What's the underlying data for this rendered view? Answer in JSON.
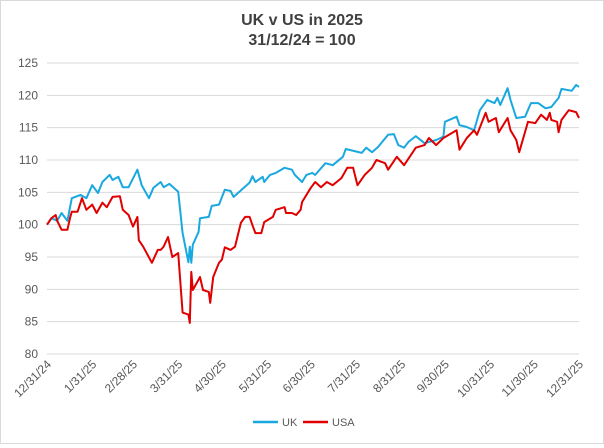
{
  "chart_data": {
    "type": "line",
    "title": "UK v US in 2025",
    "subtitle": "31/12/24 = 100",
    "xlabel": "",
    "ylabel": "",
    "ylim": [
      80,
      125
    ],
    "yticks": [
      80,
      85,
      90,
      95,
      100,
      105,
      110,
      115,
      120,
      125
    ],
    "xlim": [
      "2024-12-31",
      "2025-12-31"
    ],
    "xtick_labels": [
      "12/31/24",
      "1/31/25",
      "2/28/25",
      "3/31/25",
      "4/30/25",
      "5/31/25",
      "6/30/25",
      "7/31/25",
      "8/31/25",
      "9/30/25",
      "10/31/25",
      "11/30/25",
      "12/31/25"
    ],
    "xtick_dates": [
      "2024-12-31",
      "2025-01-31",
      "2025-02-28",
      "2025-03-31",
      "2025-04-30",
      "2025-05-31",
      "2025-06-30",
      "2025-07-31",
      "2025-08-31",
      "2025-09-30",
      "2025-10-31",
      "2025-11-30",
      "2025-12-31"
    ],
    "grid": "horizontal",
    "legend": "bottom",
    "series": [
      {
        "name": "UK",
        "color": "#1aa8e0",
        "points": [
          [
            "2024-12-31",
            100.0
          ],
          [
            "2025-01-03",
            101.0
          ],
          [
            "2025-01-07",
            100.6
          ],
          [
            "2025-01-10",
            101.8
          ],
          [
            "2025-01-14",
            100.6
          ],
          [
            "2025-01-17",
            104.1
          ],
          [
            "2025-01-23",
            104.6
          ],
          [
            "2025-01-27",
            104.1
          ],
          [
            "2025-01-31",
            106.1
          ],
          [
            "2025-02-04",
            104.9
          ],
          [
            "2025-02-07",
            106.6
          ],
          [
            "2025-02-12",
            107.7
          ],
          [
            "2025-02-14",
            106.9
          ],
          [
            "2025-02-18",
            107.4
          ],
          [
            "2025-02-21",
            105.8
          ],
          [
            "2025-02-25",
            105.8
          ],
          [
            "2025-03-03",
            108.5
          ],
          [
            "2025-03-06",
            106.1
          ],
          [
            "2025-03-11",
            104.1
          ],
          [
            "2025-03-14",
            105.7
          ],
          [
            "2025-03-19",
            106.6
          ],
          [
            "2025-03-21",
            105.8
          ],
          [
            "2025-03-25",
            106.3
          ],
          [
            "2025-03-31",
            105.1
          ],
          [
            "2025-04-03",
            98.7
          ],
          [
            "2025-04-07",
            94.2
          ],
          [
            "2025-04-08",
            96.6
          ],
          [
            "2025-04-09",
            94.1
          ],
          [
            "2025-04-10",
            96.9
          ],
          [
            "2025-04-14",
            98.9
          ],
          [
            "2025-04-15",
            101.0
          ],
          [
            "2025-04-21",
            101.2
          ],
          [
            "2025-04-23",
            102.9
          ],
          [
            "2025-04-28",
            103.1
          ],
          [
            "2025-05-02",
            105.4
          ],
          [
            "2025-05-06",
            105.2
          ],
          [
            "2025-05-08",
            104.3
          ],
          [
            "2025-05-12",
            105.1
          ],
          [
            "2025-05-19",
            106.5
          ],
          [
            "2025-05-21",
            107.5
          ],
          [
            "2025-05-23",
            106.6
          ],
          [
            "2025-05-28",
            107.4
          ],
          [
            "2025-05-29",
            106.6
          ],
          [
            "2025-06-02",
            107.7
          ],
          [
            "2025-06-06",
            108.0
          ],
          [
            "2025-06-12",
            108.8
          ],
          [
            "2025-06-17",
            108.5
          ],
          [
            "2025-06-19",
            107.7
          ],
          [
            "2025-06-24",
            106.6
          ],
          [
            "2025-06-27",
            107.7
          ],
          [
            "2025-07-01",
            108.0
          ],
          [
            "2025-07-03",
            107.7
          ],
          [
            "2025-07-10",
            109.5
          ],
          [
            "2025-07-15",
            109.2
          ],
          [
            "2025-07-22",
            110.5
          ],
          [
            "2025-07-24",
            111.7
          ],
          [
            "2025-08-04",
            111.1
          ],
          [
            "2025-08-07",
            111.9
          ],
          [
            "2025-08-11",
            111.2
          ],
          [
            "2025-08-15",
            112.0
          ],
          [
            "2025-08-22",
            113.9
          ],
          [
            "2025-08-26",
            114.0
          ],
          [
            "2025-08-29",
            112.3
          ],
          [
            "2025-09-02",
            111.9
          ],
          [
            "2025-09-05",
            112.8
          ],
          [
            "2025-09-10",
            113.7
          ],
          [
            "2025-09-16",
            112.6
          ],
          [
            "2025-09-24",
            113.1
          ],
          [
            "2025-09-29",
            113.6
          ],
          [
            "2025-09-30",
            115.9
          ],
          [
            "2025-10-08",
            116.7
          ],
          [
            "2025-10-10",
            115.4
          ],
          [
            "2025-10-15",
            115.1
          ],
          [
            "2025-10-20",
            114.6
          ],
          [
            "2025-10-24",
            117.7
          ],
          [
            "2025-10-29",
            119.3
          ],
          [
            "2025-11-03",
            118.8
          ],
          [
            "2025-11-05",
            119.6
          ],
          [
            "2025-11-07",
            118.5
          ],
          [
            "2025-11-12",
            121.1
          ],
          [
            "2025-11-14",
            119.3
          ],
          [
            "2025-11-18",
            116.5
          ],
          [
            "2025-11-24",
            116.7
          ],
          [
            "2025-11-28",
            118.8
          ],
          [
            "2025-12-03",
            118.8
          ],
          [
            "2025-12-08",
            118.0
          ],
          [
            "2025-12-12",
            118.2
          ],
          [
            "2025-12-17",
            119.6
          ],
          [
            "2025-12-19",
            121.0
          ],
          [
            "2025-12-26",
            120.7
          ],
          [
            "2025-12-29",
            121.6
          ],
          [
            "2025-12-31",
            121.3
          ]
        ]
      },
      {
        "name": "USA",
        "color": "#e00000",
        "points": [
          [
            "2024-12-31",
            100.0
          ],
          [
            "2025-01-03",
            101.0
          ],
          [
            "2025-01-06",
            101.5
          ],
          [
            "2025-01-07",
            100.6
          ],
          [
            "2025-01-10",
            99.2
          ],
          [
            "2025-01-14",
            99.2
          ],
          [
            "2025-01-16",
            101.2
          ],
          [
            "2025-01-17",
            102.0
          ],
          [
            "2025-01-21",
            102.0
          ],
          [
            "2025-01-24",
            104.1
          ],
          [
            "2025-01-27",
            102.3
          ],
          [
            "2025-01-31",
            103.1
          ],
          [
            "2025-02-03",
            101.8
          ],
          [
            "2025-02-07",
            103.4
          ],
          [
            "2025-02-10",
            102.7
          ],
          [
            "2025-02-14",
            104.3
          ],
          [
            "2025-02-19",
            104.4
          ],
          [
            "2025-02-21",
            102.3
          ],
          [
            "2025-02-25",
            101.5
          ],
          [
            "2025-02-28",
            99.7
          ],
          [
            "2025-03-03",
            101.2
          ],
          [
            "2025-03-04",
            97.6
          ],
          [
            "2025-03-07",
            96.6
          ],
          [
            "2025-03-13",
            94.1
          ],
          [
            "2025-03-17",
            96.1
          ],
          [
            "2025-03-19",
            96.1
          ],
          [
            "2025-03-21",
            96.6
          ],
          [
            "2025-03-24",
            98.1
          ],
          [
            "2025-03-27",
            95.0
          ],
          [
            "2025-03-31",
            95.6
          ],
          [
            "2025-04-03",
            86.4
          ],
          [
            "2025-04-07",
            86.1
          ],
          [
            "2025-04-08",
            84.8
          ],
          [
            "2025-04-09",
            92.7
          ],
          [
            "2025-04-10",
            89.9
          ],
          [
            "2025-04-14",
            91.5
          ],
          [
            "2025-04-15",
            91.9
          ],
          [
            "2025-04-17",
            89.9
          ],
          [
            "2025-04-21",
            89.6
          ],
          [
            "2025-04-22",
            87.9
          ],
          [
            "2025-04-24",
            91.9
          ],
          [
            "2025-04-28",
            94.1
          ],
          [
            "2025-04-30",
            94.6
          ],
          [
            "2025-05-02",
            96.5
          ],
          [
            "2025-05-06",
            96.1
          ],
          [
            "2025-05-09",
            96.6
          ],
          [
            "2025-05-13",
            100.3
          ],
          [
            "2025-05-16",
            101.2
          ],
          [
            "2025-05-19",
            101.2
          ],
          [
            "2025-05-21",
            99.9
          ],
          [
            "2025-05-23",
            98.7
          ],
          [
            "2025-05-27",
            98.7
          ],
          [
            "2025-05-29",
            100.4
          ],
          [
            "2025-06-04",
            101.2
          ],
          [
            "2025-06-06",
            102.3
          ],
          [
            "2025-06-12",
            102.7
          ],
          [
            "2025-06-13",
            101.8
          ],
          [
            "2025-06-17",
            101.8
          ],
          [
            "2025-06-20",
            101.5
          ],
          [
            "2025-06-23",
            102.3
          ],
          [
            "2025-06-24",
            103.5
          ],
          [
            "2025-06-30",
            105.7
          ],
          [
            "2025-07-03",
            106.6
          ],
          [
            "2025-07-07",
            105.8
          ],
          [
            "2025-07-11",
            106.6
          ],
          [
            "2025-07-15",
            106.1
          ],
          [
            "2025-07-21",
            107.2
          ],
          [
            "2025-07-25",
            108.8
          ],
          [
            "2025-07-29",
            108.8
          ],
          [
            "2025-08-01",
            106.1
          ],
          [
            "2025-08-06",
            107.7
          ],
          [
            "2025-08-11",
            108.8
          ],
          [
            "2025-08-14",
            110.0
          ],
          [
            "2025-08-20",
            109.5
          ],
          [
            "2025-08-22",
            108.5
          ],
          [
            "2025-08-28",
            110.5
          ],
          [
            "2025-09-02",
            109.2
          ],
          [
            "2025-09-10",
            111.9
          ],
          [
            "2025-09-16",
            112.3
          ],
          [
            "2025-09-19",
            113.4
          ],
          [
            "2025-09-24",
            112.3
          ],
          [
            "2025-09-29",
            113.4
          ],
          [
            "2025-10-08",
            114.6
          ],
          [
            "2025-10-10",
            111.6
          ],
          [
            "2025-10-15",
            113.4
          ],
          [
            "2025-10-20",
            114.6
          ],
          [
            "2025-10-22",
            113.9
          ],
          [
            "2025-10-28",
            117.3
          ],
          [
            "2025-10-30",
            115.9
          ],
          [
            "2025-11-04",
            116.5
          ],
          [
            "2025-11-06",
            114.3
          ],
          [
            "2025-11-12",
            116.5
          ],
          [
            "2025-11-14",
            114.6
          ],
          [
            "2025-11-18",
            113.1
          ],
          [
            "2025-11-20",
            111.2
          ],
          [
            "2025-11-26",
            115.9
          ],
          [
            "2025-12-01",
            115.7
          ],
          [
            "2025-12-05",
            117.0
          ],
          [
            "2025-12-09",
            116.2
          ],
          [
            "2025-12-11",
            117.3
          ],
          [
            "2025-12-12",
            116.2
          ],
          [
            "2025-12-16",
            115.9
          ],
          [
            "2025-12-17",
            114.3
          ],
          [
            "2025-12-19",
            116.2
          ],
          [
            "2025-12-24",
            117.7
          ],
          [
            "2025-12-29",
            117.4
          ],
          [
            "2025-12-31",
            116.5
          ]
        ]
      }
    ]
  }
}
